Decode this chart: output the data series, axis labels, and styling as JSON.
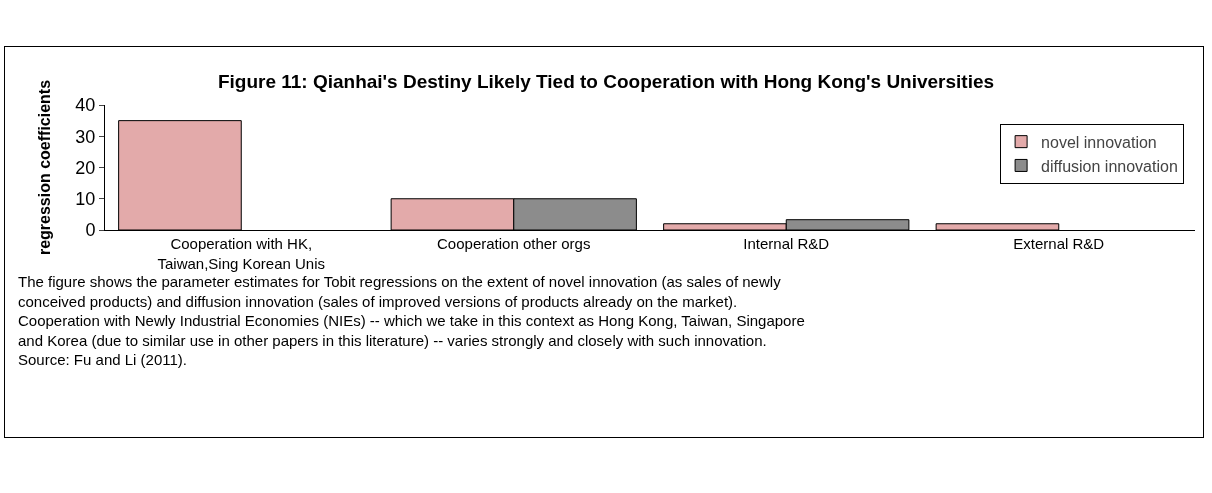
{
  "chart_data": {
    "type": "bar",
    "title": "Figure 11: Qianhai's Destiny Likely Tied to Cooperation with Hong Kong's Universities",
    "ylabel": "regression coefficients",
    "categories": [
      "Cooperation with HK,\nTaiwan,Sing Korean Unis",
      "Cooperation other orgs",
      "Internal R&D",
      "External R&D"
    ],
    "series": [
      {
        "name": "novel innovation",
        "color": "#e3aaaa",
        "values": [
          35,
          10,
          2,
          2
        ]
      },
      {
        "name": "diffusion innovation",
        "color": "#8c8c8c",
        "values": [
          null,
          10,
          3.3,
          null
        ]
      }
    ],
    "ylim": [
      0,
      40
    ],
    "yticks": [
      0,
      10,
      20,
      30,
      40
    ],
    "grid": false,
    "legend": "top right",
    "annotations": [
      "The figure shows the parameter estimates for Tobit regressions on the extent of novel innovation (as sales of newly\nconceived products) and diffusion innovation (sales of improved versions of products already on the market).\nCooperation with Newly Industrial Economies (NIEs) -- which we take in this context as Hong Kong, Taiwan, Singapore\nand Korea (due to similar use in other papers in this literature) -- varies strongly and closely with such innovation.\nSource: Fu and Li (2011)."
    ]
  }
}
